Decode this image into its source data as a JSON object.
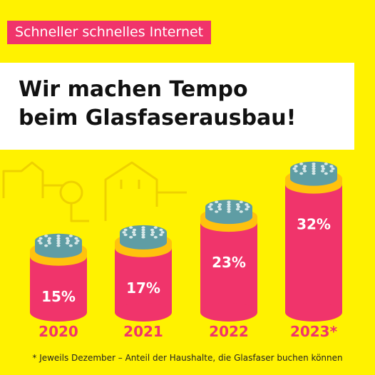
{
  "header": {
    "tag": "Schneller schnelles Internet",
    "title_line1": "Wir machen Tempo",
    "title_line2": "beim Glasfaserausbau!"
  },
  "footnote": "* Jeweils Dezember – Anteil der Haushalte, die Glasfaser buchen können",
  "colors": {
    "background": "#FFF200",
    "cylinder": "#F0346B",
    "ring": "#FFC20E",
    "fiber_bundle": "#5F9DA4",
    "fiber_tip": "#D8E8E8",
    "year_label": "#F0346B",
    "outline": "#EED100"
  },
  "chart_data": {
    "type": "bar",
    "categories": [
      "2020",
      "2021",
      "2022",
      "2023*"
    ],
    "values": [
      15,
      17,
      23,
      32
    ],
    "value_labels": [
      "15%",
      "17%",
      "23%",
      "32%"
    ],
    "unit": "%"
  }
}
